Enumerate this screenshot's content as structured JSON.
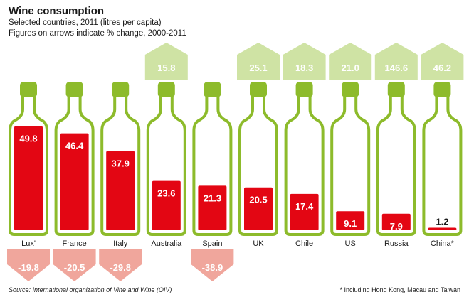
{
  "title": "Wine consumption",
  "subtitle_1": "Selected countries, 2011 (litres per capita)",
  "subtitle_2": "Figures on arrows indicate % change, 2000-2011",
  "source": "Source: International organization of Vine and Wine (OIV)",
  "footnote": "* Including Hong Kong, Macau and Taiwan",
  "colors": {
    "wine": "#e30613",
    "bottle": "#8dbb2b",
    "arrow_up": "#cfe3a4",
    "arrow_down": "#f0a69c",
    "white": "#ffffff"
  },
  "chart_data": {
    "type": "bar",
    "title": "Wine consumption",
    "subtitle": "Selected countries, 2011 (litres per capita)",
    "categories": [
      "Lux'",
      "France",
      "Italy",
      "Australia",
      "Spain",
      "UK",
      "Chile",
      "US",
      "Russia",
      "China*"
    ],
    "values": [
      49.8,
      46.4,
      37.9,
      23.6,
      21.3,
      20.5,
      17.4,
      9.1,
      7.9,
      1.2
    ],
    "value_labels": [
      "49.8",
      "46.4",
      "37.9",
      "23.6",
      "21.3",
      "20.5",
      "17.4",
      "9.1",
      "7.9",
      "1.2"
    ],
    "pct_change": [
      -19.8,
      -20.5,
      -29.8,
      15.8,
      -38.9,
      25.1,
      18.3,
      21.0,
      146.6,
      46.2
    ],
    "pct_change_labels": [
      "-19.8",
      "-20.5",
      "-29.8",
      "15.8",
      "-38.9",
      "25.1",
      "18.3",
      "21.0",
      "146.6",
      "46.2"
    ],
    "unit": "litres per capita",
    "ylim": [
      0,
      50
    ],
    "grid": false,
    "legend": "none"
  }
}
